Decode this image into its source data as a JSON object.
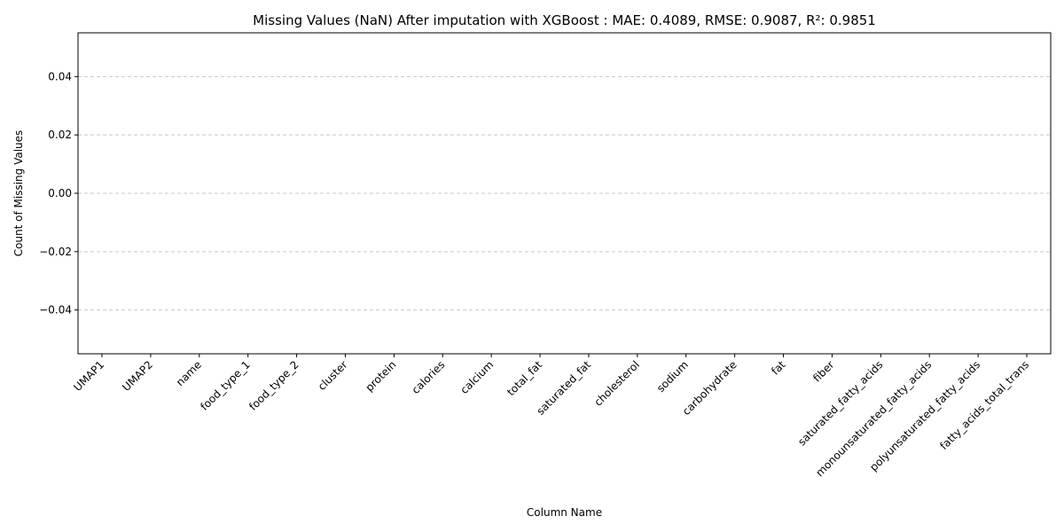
{
  "chart_data": {
    "type": "bar",
    "title": "Missing Values (NaN) After imputation with XGBoost : MAE:  0.4089, RMSE: 0.9087, R²:   0.9851",
    "xlabel": "Column Name",
    "ylabel": "Count of Missing Values",
    "categories": [
      "UMAP1",
      "UMAP2",
      "name",
      "food_type_1",
      "food_type_2",
      "cluster",
      "protein",
      "calories",
      "calcium",
      "total_fat",
      "saturated_fat",
      "cholesterol",
      "sodium",
      "carbohydrate",
      "fat",
      "fiber",
      "saturated_fatty_acids",
      "monounsaturated_fatty_acids",
      "polyunsaturated_fatty_acids",
      "fatty_acids_total_trans"
    ],
    "values": [
      0,
      0,
      0,
      0,
      0,
      0,
      0,
      0,
      0,
      0,
      0,
      0,
      0,
      0,
      0,
      0,
      0,
      0,
      0,
      0
    ],
    "ylim": [
      -0.055,
      0.055
    ],
    "yticks": [
      -0.04,
      -0.02,
      0.0,
      0.02,
      0.04
    ],
    "ytick_labels": [
      "−0.04",
      "−0.02",
      "0.00",
      "0.02",
      "0.04"
    ],
    "grid": "y-dashed",
    "bar_color": "#87ceeb",
    "grid_color": "#c8c8c8"
  }
}
